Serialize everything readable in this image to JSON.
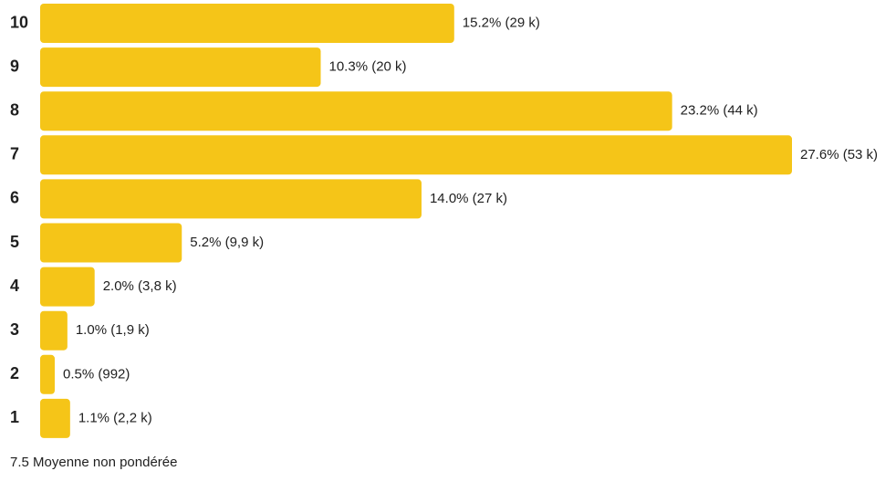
{
  "chart_data": {
    "type": "bar",
    "orientation": "horizontal",
    "categories": [
      "10",
      "9",
      "8",
      "7",
      "6",
      "5",
      "4",
      "3",
      "2",
      "1"
    ],
    "values": [
      15.2,
      10.3,
      23.2,
      27.6,
      14.0,
      5.2,
      2.0,
      1.0,
      0.5,
      1.1
    ],
    "value_labels": [
      "15.2% (29 k)",
      "10.3% (20 k)",
      "23.2% (44 k)",
      "27.6% (53 k)",
      "14.0% (27 k)",
      "5.2% (9,9 k)",
      "2.0% (3,8 k)",
      "1.0% (1,9 k)",
      "0.5% (992)",
      "1.1% (2,2 k)"
    ],
    "bar_color": "#f5c518",
    "grid": false
  },
  "footer": {
    "average_label": "7.5 Moyenne non pondérée"
  }
}
